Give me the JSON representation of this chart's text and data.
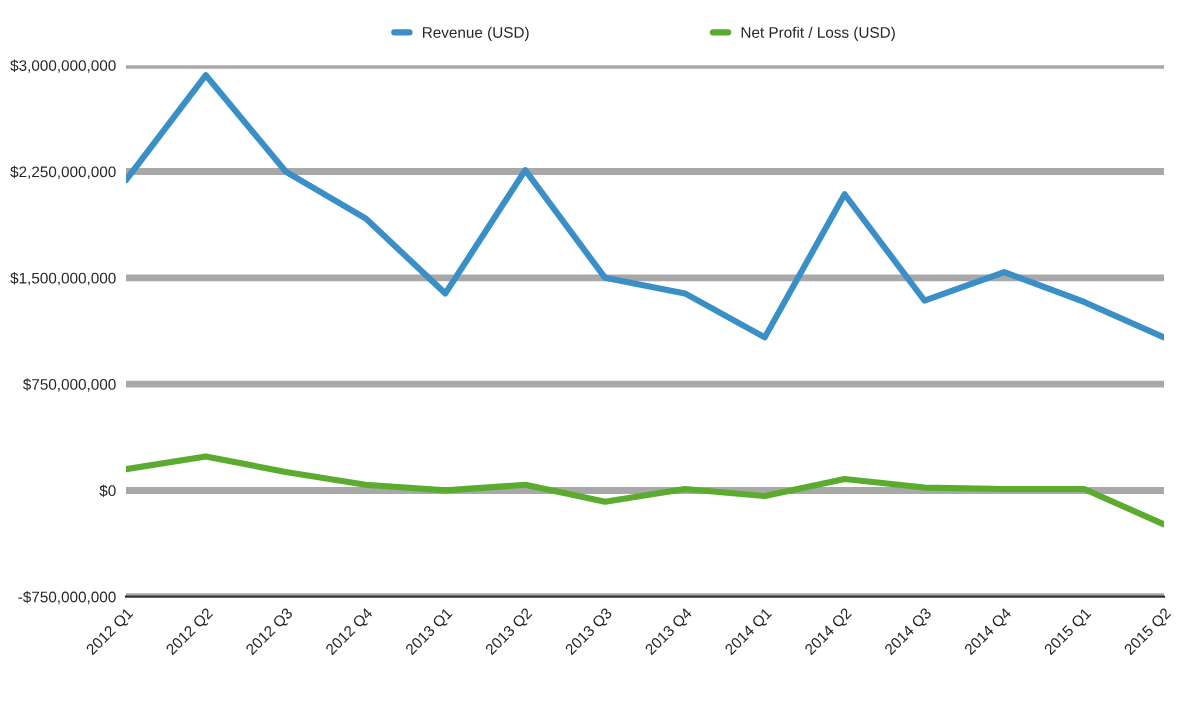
{
  "chart_data": {
    "type": "line",
    "categories": [
      "2012 Q1",
      "2012 Q2",
      "2012 Q3",
      "2012 Q4",
      "2013 Q1",
      "2013 Q2",
      "2013 Q3",
      "2013 Q4",
      "2014 Q1",
      "2014 Q2",
      "2014 Q3",
      "2014 Q4",
      "2015 Q1",
      "2015 Q2"
    ],
    "series": [
      {
        "name": "Revenue (USD)",
        "color": "#3a8fc7",
        "values": [
          2190000000,
          2930000000,
          2250000000,
          1920000000,
          1390000000,
          2260000000,
          1500000000,
          1390000000,
          1080000000,
          2090000000,
          1340000000,
          1540000000,
          1330000000,
          1080000000
        ]
      },
      {
        "name": "Net Profit / Loss (USD)",
        "color": "#5aab2e",
        "values": [
          150000000,
          240000000,
          130000000,
          40000000,
          0,
          40000000,
          -80000000,
          10000000,
          -40000000,
          80000000,
          20000000,
          10000000,
          10000000,
          -240000000
        ]
      }
    ],
    "ylim": [
      -750000000,
      3000000000
    ],
    "yticks": [
      {
        "value": -750000000,
        "label": "-$750,000,000"
      },
      {
        "value": 0,
        "label": "$0"
      },
      {
        "value": 750000000,
        "label": "$750,000,000"
      },
      {
        "value": 1500000000,
        "label": "$1,500,000,000"
      },
      {
        "value": 2250000000,
        "label": "$2,250,000,000"
      },
      {
        "value": 3000000000,
        "label": "$3,000,000,000"
      }
    ],
    "grid": "y",
    "legend": "top",
    "marker": "none",
    "line_style": "solid"
  }
}
